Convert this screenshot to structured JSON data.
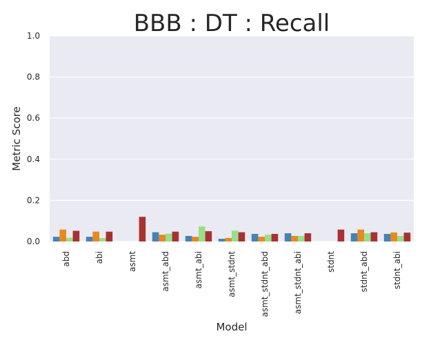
{
  "chart_data": {
    "type": "bar",
    "title": "BBB : DT : Recall",
    "xlabel": "Model",
    "ylabel": "Metric Score",
    "ylim": [
      0,
      1.0
    ],
    "yticks": [
      "0.0",
      "0.2",
      "0.4",
      "0.6",
      "0.8",
      "1.0"
    ],
    "grid": true,
    "legend": "none",
    "categories": [
      "abd",
      "abi",
      "asmt",
      "asmt_abd",
      "asmt_abi",
      "asmt_stdnt",
      "asmt_stdnt_abd",
      "asmt_stdnt_abi",
      "stdnt",
      "stdnt_abd",
      "stdnt_abi"
    ],
    "series": [
      {
        "color": "#4682b4",
        "values": [
          0.023,
          0.023,
          0.0,
          0.045,
          0.027,
          0.013,
          0.037,
          0.04,
          0.0,
          0.04,
          0.037
        ]
      },
      {
        "color": "#e8891e",
        "values": [
          0.058,
          0.048,
          0.0,
          0.033,
          0.023,
          0.017,
          0.023,
          0.027,
          0.0,
          0.058,
          0.044
        ]
      },
      {
        "color": "#98df8a",
        "values": [
          0.018,
          0.017,
          0.0,
          0.038,
          0.073,
          0.053,
          0.033,
          0.027,
          0.0,
          0.04,
          0.027
        ]
      },
      {
        "color": "#a83232",
        "values": [
          0.052,
          0.048,
          0.12,
          0.048,
          0.05,
          0.045,
          0.037,
          0.04,
          0.058,
          0.045,
          0.043
        ]
      }
    ],
    "colors": {
      "plot_background": "#eaeaf2",
      "grid": "#ffffff"
    }
  }
}
